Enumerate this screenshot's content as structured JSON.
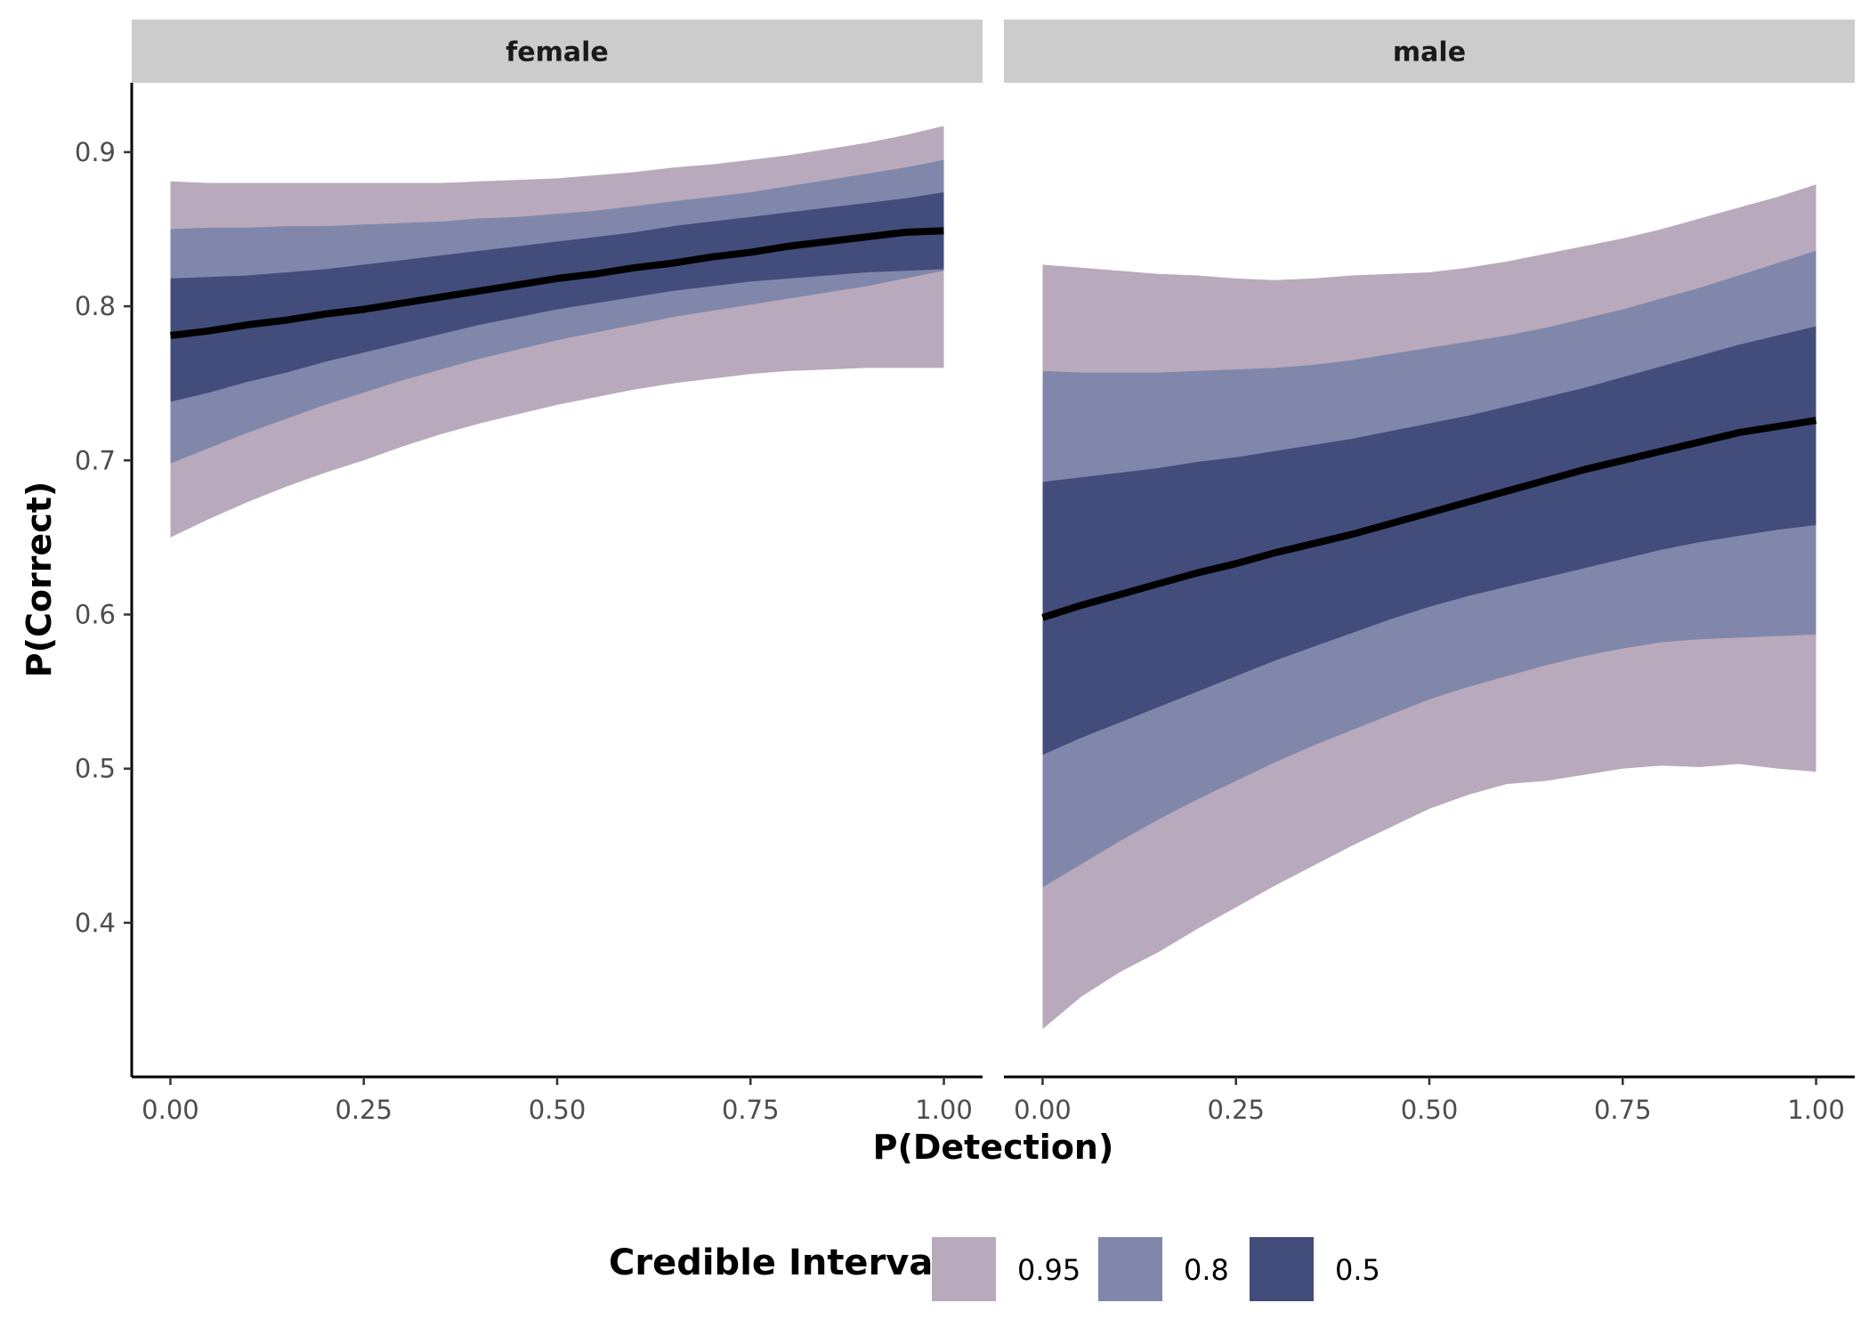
{
  "chart_data": {
    "type": "area",
    "facets": [
      {
        "strip_label": "female",
        "x": [
          0,
          0.05,
          0.1,
          0.15,
          0.2,
          0.25,
          0.3,
          0.35,
          0.4,
          0.45,
          0.5,
          0.55,
          0.6,
          0.65,
          0.7,
          0.75,
          0.8,
          0.85,
          0.9,
          0.95,
          1.0
        ],
        "median": [
          0.781,
          0.784,
          0.788,
          0.791,
          0.795,
          0.798,
          0.802,
          0.806,
          0.81,
          0.814,
          0.818,
          0.821,
          0.825,
          0.828,
          0.832,
          0.835,
          0.839,
          0.842,
          0.845,
          0.848,
          0.849
        ],
        "bands": [
          {
            "level": "0.95",
            "lower": [
              0.65,
              0.662,
              0.673,
              0.683,
              0.692,
              0.7,
              0.709,
              0.717,
              0.724,
              0.73,
              0.736,
              0.741,
              0.746,
              0.75,
              0.753,
              0.756,
              0.758,
              0.759,
              0.76,
              0.76,
              0.76
            ],
            "upper": [
              0.881,
              0.88,
              0.88,
              0.88,
              0.88,
              0.88,
              0.88,
              0.88,
              0.881,
              0.882,
              0.883,
              0.885,
              0.887,
              0.89,
              0.892,
              0.895,
              0.898,
              0.902,
              0.906,
              0.911,
              0.917
            ]
          },
          {
            "level": "0.8",
            "lower": [
              0.698,
              0.708,
              0.718,
              0.727,
              0.736,
              0.744,
              0.752,
              0.759,
              0.766,
              0.772,
              0.778,
              0.783,
              0.788,
              0.793,
              0.797,
              0.801,
              0.805,
              0.809,
              0.813,
              0.818,
              0.823
            ],
            "upper": [
              0.85,
              0.851,
              0.851,
              0.852,
              0.852,
              0.853,
              0.854,
              0.855,
              0.857,
              0.858,
              0.86,
              0.862,
              0.865,
              0.868,
              0.871,
              0.874,
              0.878,
              0.882,
              0.886,
              0.89,
              0.895
            ]
          },
          {
            "level": "0.5",
            "lower": [
              0.738,
              0.744,
              0.751,
              0.757,
              0.764,
              0.77,
              0.776,
              0.782,
              0.788,
              0.793,
              0.798,
              0.802,
              0.806,
              0.81,
              0.813,
              0.816,
              0.818,
              0.82,
              0.822,
              0.823,
              0.824
            ],
            "upper": [
              0.818,
              0.819,
              0.82,
              0.822,
              0.824,
              0.827,
              0.83,
              0.833,
              0.836,
              0.839,
              0.842,
              0.845,
              0.848,
              0.852,
              0.855,
              0.858,
              0.861,
              0.864,
              0.867,
              0.87,
              0.874
            ]
          }
        ]
      },
      {
        "strip_label": "male",
        "x": [
          0,
          0.05,
          0.1,
          0.15,
          0.2,
          0.25,
          0.3,
          0.35,
          0.4,
          0.45,
          0.5,
          0.55,
          0.6,
          0.65,
          0.7,
          0.75,
          0.8,
          0.85,
          0.9,
          0.95,
          1.0
        ],
        "median": [
          0.598,
          0.606,
          0.613,
          0.62,
          0.627,
          0.633,
          0.64,
          0.646,
          0.652,
          0.659,
          0.666,
          0.673,
          0.68,
          0.687,
          0.694,
          0.7,
          0.706,
          0.712,
          0.718,
          0.722,
          0.726
        ],
        "bands": [
          {
            "level": "0.95",
            "lower": [
              0.331,
              0.352,
              0.368,
              0.381,
              0.396,
              0.41,
              0.424,
              0.437,
              0.45,
              0.462,
              0.474,
              0.483,
              0.49,
              0.492,
              0.496,
              0.5,
              0.502,
              0.501,
              0.503,
              0.5,
              0.498
            ],
            "upper": [
              0.827,
              0.825,
              0.823,
              0.821,
              0.82,
              0.818,
              0.817,
              0.818,
              0.82,
              0.821,
              0.822,
              0.825,
              0.829,
              0.834,
              0.839,
              0.844,
              0.85,
              0.857,
              0.864,
              0.871,
              0.879
            ]
          },
          {
            "level": "0.8",
            "lower": [
              0.423,
              0.438,
              0.453,
              0.467,
              0.48,
              0.492,
              0.504,
              0.515,
              0.525,
              0.535,
              0.545,
              0.553,
              0.56,
              0.567,
              0.573,
              0.578,
              0.582,
              0.584,
              0.585,
              0.586,
              0.587
            ],
            "upper": [
              0.758,
              0.757,
              0.757,
              0.757,
              0.758,
              0.759,
              0.76,
              0.762,
              0.765,
              0.769,
              0.773,
              0.777,
              0.781,
              0.786,
              0.792,
              0.798,
              0.805,
              0.812,
              0.82,
              0.828,
              0.836
            ]
          },
          {
            "level": "0.5",
            "lower": [
              0.509,
              0.52,
              0.53,
              0.54,
              0.55,
              0.56,
              0.57,
              0.579,
              0.588,
              0.597,
              0.605,
              0.612,
              0.618,
              0.624,
              0.63,
              0.636,
              0.642,
              0.647,
              0.651,
              0.655,
              0.658
            ],
            "upper": [
              0.686,
              0.689,
              0.692,
              0.695,
              0.699,
              0.702,
              0.706,
              0.71,
              0.714,
              0.719,
              0.724,
              0.729,
              0.735,
              0.741,
              0.747,
              0.754,
              0.761,
              0.768,
              0.775,
              0.781,
              0.787
            ]
          }
        ]
      }
    ],
    "xlabel": "P(Detection)",
    "ylabel": "P(Correct)",
    "xlim": [
      -0.05,
      1.05
    ],
    "ylim": [
      0.3,
      0.945
    ],
    "x_ticks": [
      0,
      0.25,
      0.5,
      0.75,
      1.0
    ],
    "x_tick_labels": [
      "0.00",
      "0.25",
      "0.50",
      "0.75",
      "1.00"
    ],
    "y_ticks": [
      0.4,
      0.5,
      0.6,
      0.7,
      0.8,
      0.9
    ],
    "y_tick_labels": [
      "0.4",
      "0.5",
      "0.6",
      "0.7",
      "0.8",
      "0.9"
    ],
    "grid": false,
    "legend": {
      "title": "Credible Interval",
      "placement": "bottom",
      "entries": [
        {
          "label": "0.95",
          "color": "#b8aabc"
        },
        {
          "label": "0.8",
          "color": "#8187aa"
        },
        {
          "label": "0.5",
          "color": "#424d7c"
        }
      ]
    },
    "median_line_color": "#000000",
    "strip_fill": "#cccccc"
  }
}
